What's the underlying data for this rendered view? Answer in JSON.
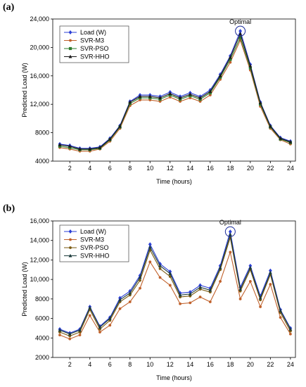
{
  "chart_data": [
    {
      "type": "line",
      "panel_label": "(a)",
      "xlabel": "Time (hours)",
      "ylabel": "Predicted Load (W)",
      "ylim": [
        4000,
        24000
      ],
      "yticks": [
        "4000",
        "8000",
        "12,000",
        "16,000",
        "20,000",
        "24,000"
      ],
      "ytick_values": [
        4000,
        8000,
        12000,
        16000,
        20000,
        24000
      ],
      "xlim": [
        0.3,
        24.5
      ],
      "xticks": [
        2,
        4,
        6,
        8,
        10,
        12,
        14,
        16,
        18,
        20,
        22,
        24
      ],
      "x": [
        1,
        2,
        3,
        4,
        5,
        6,
        7,
        8,
        9,
        10,
        11,
        12,
        13,
        14,
        15,
        16,
        17,
        18,
        19,
        20,
        21,
        22,
        23,
        24
      ],
      "legend_position": "top-left",
      "grid": false,
      "series": [
        {
          "name": "Load (W)",
          "color": "#2b3fd6",
          "marker": "diamond",
          "values": [
            6400,
            6200,
            5800,
            5800,
            6000,
            7200,
            9000,
            12400,
            13300,
            13300,
            13100,
            13700,
            13100,
            13600,
            13100,
            14000,
            16200,
            18800,
            22300,
            17600,
            12300,
            9000,
            7300,
            6800
          ]
        },
        {
          "name": "SVR-M3",
          "color": "#c0602a",
          "marker": "dot",
          "values": [
            5900,
            5700,
            5400,
            5400,
            5700,
            6800,
            8600,
            11800,
            12600,
            12600,
            12400,
            13000,
            12400,
            12900,
            12400,
            13300,
            15500,
            17900,
            21000,
            16800,
            11700,
            8600,
            7000,
            6400
          ]
        },
        {
          "name": "SVR-PSO",
          "color": "#2f7d2f",
          "marker": "square",
          "values": [
            6100,
            5900,
            5600,
            5600,
            5800,
            7000,
            8800,
            12100,
            12900,
            12900,
            12700,
            13300,
            12700,
            13200,
            12700,
            13600,
            15800,
            18300,
            21400,
            17100,
            12000,
            8800,
            7100,
            6600
          ]
        },
        {
          "name": "SVR-HHO",
          "color": "#1a1a1a",
          "marker": "triangle",
          "values": [
            6300,
            6100,
            5700,
            5700,
            5900,
            7100,
            8900,
            12300,
            13100,
            13100,
            12900,
            13500,
            12900,
            13400,
            12900,
            13800,
            16000,
            18600,
            21900,
            17400,
            12200,
            8900,
            7200,
            6700
          ]
        }
      ],
      "annotation": {
        "text": "Optimal",
        "x": 19,
        "y": 22300
      }
    },
    {
      "type": "line",
      "panel_label": "(b)",
      "xlabel": "Time (hours)",
      "ylabel": "Predicted Load (W)",
      "ylim": [
        2000,
        16000
      ],
      "yticks": [
        "2000",
        "4000",
        "6000",
        "8000",
        "10,000",
        "12,000",
        "14,000",
        "16,000"
      ],
      "ytick_values": [
        2000,
        4000,
        6000,
        8000,
        10000,
        12000,
        14000,
        16000
      ],
      "xlim": [
        0.3,
        24.5
      ],
      "xticks": [
        2,
        4,
        6,
        8,
        10,
        12,
        14,
        16,
        18,
        20,
        22,
        24
      ],
      "x": [
        1,
        2,
        3,
        4,
        5,
        6,
        7,
        8,
        9,
        10,
        11,
        12,
        13,
        14,
        15,
        16,
        17,
        18,
        19,
        20,
        21,
        22,
        23,
        24
      ],
      "legend_position": "top-left",
      "grid": false,
      "series": [
        {
          "name": "Load (W)",
          "color": "#2b3fd6",
          "marker": "diamond",
          "values": [
            4900,
            4500,
            4900,
            7200,
            5200,
            6100,
            8100,
            8800,
            10400,
            13600,
            11600,
            10800,
            8600,
            8700,
            9400,
            9100,
            11400,
            14900,
            9200,
            11400,
            8300,
            10900,
            6900,
            5000
          ]
        },
        {
          "name": "SVR-M3",
          "color": "#c0602a",
          "marker": "dot",
          "values": [
            4300,
            3900,
            4300,
            6300,
            4600,
            5300,
            7000,
            7700,
            9100,
            11800,
            10200,
            9400,
            7500,
            7600,
            8200,
            7700,
            9800,
            12800,
            8000,
            9800,
            7200,
            9500,
            6100,
            4400
          ]
        },
        {
          "name": "SVR-PSO",
          "color": "#7a5a10",
          "marker": "dot",
          "values": [
            4600,
            4200,
            4600,
            6900,
            4900,
            5800,
            7700,
            8400,
            9900,
            13000,
            11100,
            10300,
            8200,
            8300,
            9000,
            8700,
            11000,
            14300,
            8800,
            11000,
            7900,
            10500,
            6600,
            4700
          ]
        },
        {
          "name": "SVR-HHO",
          "color": "#1a3a3a",
          "marker": "triangle",
          "values": [
            4800,
            4400,
            4800,
            7100,
            5100,
            6000,
            7900,
            8600,
            10200,
            13300,
            11400,
            10600,
            8400,
            8500,
            9200,
            8900,
            11200,
            14600,
            9000,
            11200,
            8100,
            10700,
            6800,
            4900
          ]
        }
      ],
      "annotation": {
        "text": "Optimal",
        "x": 18,
        "y": 14900
      }
    }
  ]
}
